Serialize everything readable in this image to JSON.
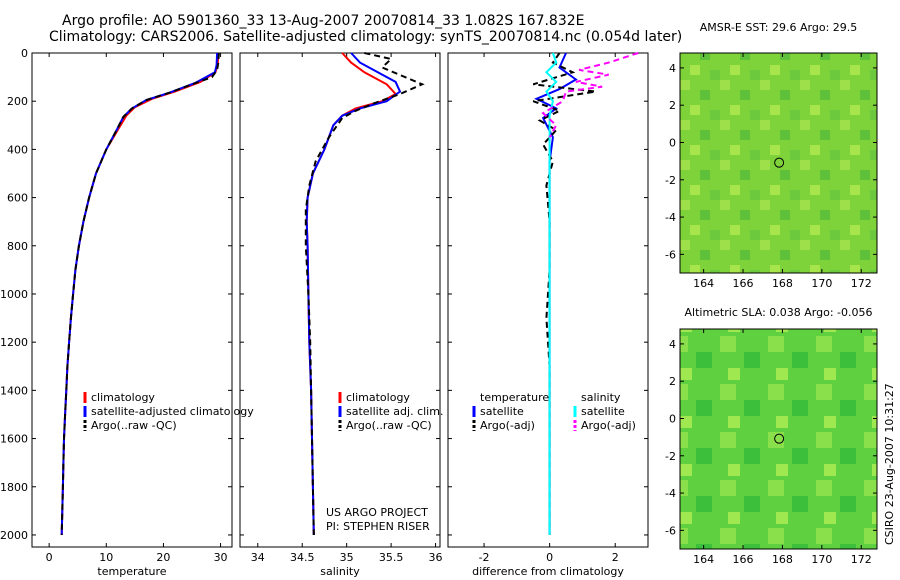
{
  "header": {
    "title_line1": "Argo profile: AO 5901360_33 13-Aug-2007 20070814_33 1.082S 167.832E",
    "title_line2": "Climatology: CARS2006. Satellite-adjusted climatology: synTS_20070814.nc (0.054d later)"
  },
  "side_text": "CSIRO 23-Aug-2007 10:31:27",
  "colors": {
    "climatology": "#ff0000",
    "satellite": "#0000ff",
    "argo": "#000000",
    "salinity_sat": "#00ffff",
    "salinity_argo": "#ff00ff"
  },
  "chart_data": [
    {
      "type": "line",
      "id": "temperature",
      "xlabel": "temperature",
      "xlim": [
        -3,
        32
      ],
      "ylim": [
        2050,
        0
      ],
      "xticks": [
        0,
        10,
        20,
        30
      ],
      "xtick_labels": [
        "0",
        "10",
        "20",
        "30"
      ],
      "yticks": [
        0,
        200,
        400,
        600,
        800,
        1000,
        1200,
        1400,
        1600,
        1800,
        2000
      ],
      "ytick_labels": [
        "0",
        "200",
        "400",
        "600",
        "800",
        "1000",
        "1200",
        "1400",
        "1600",
        "1800",
        "2000"
      ],
      "legend": [
        "climatology",
        "satellite-adjusted climatology",
        "Argo(..raw -QC)"
      ],
      "series": [
        {
          "name": "climatology",
          "style": "solid",
          "color": "#ff0000",
          "points": [
            [
              29.6,
              0
            ],
            [
              29.5,
              50
            ],
            [
              29.1,
              80
            ],
            [
              26.5,
              120
            ],
            [
              22,
              160
            ],
            [
              18,
              190
            ],
            [
              15,
              225
            ],
            [
              13.5,
              260
            ],
            [
              12,
              320
            ],
            [
              10,
              400
            ],
            [
              8.2,
              500
            ],
            [
              7,
              600
            ],
            [
              6,
              700
            ],
            [
              5.2,
              800
            ],
            [
              4.6,
              900
            ],
            [
              4.2,
              1000
            ],
            [
              3.8,
              1100
            ],
            [
              3.5,
              1200
            ],
            [
              3.2,
              1300
            ],
            [
              3,
              1400
            ],
            [
              2.8,
              1500
            ],
            [
              2.6,
              1600
            ],
            [
              2.5,
              1700
            ],
            [
              2.4,
              1800
            ],
            [
              2.3,
              1900
            ],
            [
              2.2,
              2000
            ]
          ]
        },
        {
          "name": "satellite-adjusted climatology",
          "style": "solid",
          "color": "#0000ff",
          "points": [
            [
              29.4,
              0
            ],
            [
              29.3,
              50
            ],
            [
              29,
              80
            ],
            [
              25.5,
              125
            ],
            [
              21,
              165
            ],
            [
              17,
              195
            ],
            [
              14.5,
              230
            ],
            [
              13,
              265
            ],
            [
              11.8,
              320
            ],
            [
              10,
              400
            ],
            [
              8.2,
              500
            ],
            [
              7,
              600
            ],
            [
              6,
              700
            ],
            [
              5.2,
              800
            ],
            [
              4.6,
              900
            ],
            [
              4.2,
              1000
            ],
            [
              3.8,
              1100
            ],
            [
              3.5,
              1200
            ],
            [
              3.2,
              1300
            ],
            [
              3,
              1400
            ],
            [
              2.8,
              1500
            ],
            [
              2.6,
              1600
            ],
            [
              2.5,
              1700
            ],
            [
              2.4,
              1800
            ],
            [
              2.3,
              1900
            ],
            [
              2.2,
              2000
            ]
          ]
        },
        {
          "name": "Argo(..raw -QC)",
          "style": "dash",
          "color": "#000000",
          "points": [
            [
              29.7,
              0
            ],
            [
              29.6,
              40
            ],
            [
              29.4,
              70
            ],
            [
              28.5,
              100
            ],
            [
              25,
              130
            ],
            [
              21,
              165
            ],
            [
              17,
              195
            ],
            [
              14.5,
              230
            ],
            [
              13,
              265
            ],
            [
              11.8,
              320
            ],
            [
              10,
              400
            ],
            [
              8.2,
              500
            ],
            [
              7,
              600
            ],
            [
              6,
              700
            ],
            [
              5.2,
              800
            ],
            [
              4.6,
              900
            ],
            [
              4.2,
              1000
            ],
            [
              3.8,
              1100
            ],
            [
              3.5,
              1200
            ],
            [
              3.2,
              1300
            ],
            [
              3,
              1400
            ],
            [
              2.8,
              1500
            ],
            [
              2.6,
              1600
            ],
            [
              2.5,
              1700
            ],
            [
              2.4,
              1800
            ],
            [
              2.3,
              1900
            ],
            [
              2.2,
              2000
            ]
          ]
        }
      ]
    },
    {
      "type": "line",
      "id": "salinity",
      "xlabel": "salinity",
      "xlim": [
        33.8,
        36.05
      ],
      "ylim": [
        2050,
        0
      ],
      "xticks": [
        34,
        34.5,
        35,
        35.5,
        36
      ],
      "xtick_labels": [
        "34",
        "34.5",
        "35",
        "35.5",
        "36"
      ],
      "legend": [
        "climatology",
        "satellite adj. clim.",
        "Argo(..raw -QC)"
      ],
      "annotation": [
        "US ARGO PROJECT",
        "PI: STEPHEN RISER"
      ],
      "series": [
        {
          "name": "climatology",
          "style": "solid",
          "color": "#ff0000",
          "points": [
            [
              34.95,
              0
            ],
            [
              35.05,
              40
            ],
            [
              35.2,
              80
            ],
            [
              35.45,
              130
            ],
            [
              35.55,
              170
            ],
            [
              35.4,
              200
            ],
            [
              35.1,
              230
            ],
            [
              34.95,
              260
            ],
            [
              34.85,
              300
            ],
            [
              34.75,
              400
            ],
            [
              34.62,
              500
            ],
            [
              34.56,
              600
            ],
            [
              34.55,
              700
            ],
            [
              34.56,
              800
            ],
            [
              34.57,
              1000
            ],
            [
              34.58,
              1200
            ],
            [
              34.6,
              1400
            ],
            [
              34.61,
              1600
            ],
            [
              34.62,
              1800
            ],
            [
              34.63,
              2000
            ]
          ]
        },
        {
          "name": "satellite adj. clim.",
          "style": "solid",
          "color": "#0000ff",
          "points": [
            [
              35.05,
              0
            ],
            [
              35.15,
              40
            ],
            [
              35.35,
              80
            ],
            [
              35.55,
              120
            ],
            [
              35.6,
              160
            ],
            [
              35.45,
              200
            ],
            [
              35.15,
              230
            ],
            [
              34.95,
              260
            ],
            [
              34.85,
              300
            ],
            [
              34.75,
              400
            ],
            [
              34.62,
              500
            ],
            [
              34.56,
              600
            ],
            [
              34.55,
              700
            ],
            [
              34.56,
              800
            ],
            [
              34.57,
              1000
            ],
            [
              34.58,
              1200
            ],
            [
              34.6,
              1400
            ],
            [
              34.61,
              1600
            ],
            [
              34.62,
              1800
            ],
            [
              34.63,
              2000
            ]
          ]
        },
        {
          "name": "Argo(..raw -QC)",
          "style": "dash",
          "color": "#000000",
          "points": [
            [
              35.2,
              0
            ],
            [
              35.5,
              25
            ],
            [
              35.4,
              60
            ],
            [
              35.85,
              130
            ],
            [
              35.6,
              170
            ],
            [
              35.3,
              210
            ],
            [
              35.1,
              240
            ],
            [
              34.95,
              270
            ],
            [
              34.8,
              350
            ],
            [
              34.65,
              450
            ],
            [
              34.58,
              550
            ],
            [
              34.54,
              650
            ],
            [
              34.54,
              800
            ],
            [
              34.57,
              1000
            ],
            [
              34.59,
              1200
            ],
            [
              34.6,
              1400
            ],
            [
              34.61,
              1600
            ],
            [
              34.62,
              1800
            ],
            [
              34.63,
              2000
            ]
          ]
        }
      ]
    },
    {
      "type": "line",
      "id": "difference",
      "xlabel": "difference from climatology",
      "xlim": [
        -3.1,
        3
      ],
      "ylim": [
        2050,
        0
      ],
      "xticks": [
        -2,
        0,
        2
      ],
      "xtick_labels": [
        "-2",
        "0",
        "2"
      ],
      "legend_groups": [
        {
          "heading": "temperature",
          "items": [
            "satellite",
            "Argo(-adj)"
          ]
        },
        {
          "heading": "salinity",
          "items": [
            "satellite",
            "Argo(-adj)"
          ]
        }
      ],
      "series": [
        {
          "name": "temperature satellite",
          "style": "solid",
          "color": "#0000ff",
          "points": [
            [
              0.5,
              0
            ],
            [
              0.3,
              60
            ],
            [
              0.8,
              110
            ],
            [
              0.3,
              150
            ],
            [
              -0.4,
              190
            ],
            [
              0.2,
              230
            ],
            [
              -0.2,
              270
            ],
            [
              0.1,
              350
            ],
            [
              0,
              450
            ],
            [
              0,
              600
            ],
            [
              0,
              800
            ],
            [
              0,
              1000
            ],
            [
              0,
              1500
            ],
            [
              0,
              2000
            ]
          ]
        },
        {
          "name": "temperature Argo(-adj)",
          "style": "dash",
          "color": "#000000",
          "points": [
            [
              0.3,
              0
            ],
            [
              0.1,
              40
            ],
            [
              0.7,
              80
            ],
            [
              -0.5,
              130
            ],
            [
              1.4,
              160
            ],
            [
              -0.5,
              200
            ],
            [
              0.3,
              240
            ],
            [
              -0.3,
              280
            ],
            [
              0.2,
              320
            ],
            [
              -0.2,
              380
            ],
            [
              0.1,
              450
            ],
            [
              -0.1,
              550
            ],
            [
              0,
              700
            ],
            [
              0,
              900
            ],
            [
              -0.1,
              1100
            ],
            [
              0,
              1300
            ],
            [
              0,
              1500
            ],
            [
              0,
              1700
            ],
            [
              0,
              2000
            ]
          ]
        },
        {
          "name": "salinity satellite",
          "style": "solid",
          "color": "#00ffff",
          "points": [
            [
              0.1,
              0
            ],
            [
              0.2,
              40
            ],
            [
              -0.1,
              80
            ],
            [
              0.2,
              120
            ],
            [
              -0.1,
              160
            ],
            [
              0.1,
              200
            ],
            [
              0,
              260
            ],
            [
              0,
              400
            ],
            [
              0,
              600
            ],
            [
              0,
              800
            ],
            [
              0,
              1000
            ],
            [
              0,
              1500
            ],
            [
              0,
              2000
            ]
          ]
        },
        {
          "name": "salinity Argo(-adj)",
          "style": "dash",
          "color": "#ff00ff",
          "points": [
            [
              2.7,
              0
            ],
            [
              1.8,
              40
            ],
            [
              0.9,
              70
            ],
            [
              1.8,
              90
            ],
            [
              0.8,
              120
            ],
            [
              1.6,
              140
            ],
            [
              0.5,
              160
            ],
            [
              0.4,
              200
            ],
            [
              -0.2,
              250
            ],
            [
              0.2,
              300
            ],
            [
              0,
              350
            ]
          ]
        }
      ]
    },
    {
      "type": "heatmap",
      "id": "sst_map",
      "title": "AMSR-E SST: 29.6 Argo: 29.5",
      "xlim": [
        162.8,
        172.8
      ],
      "ylim": [
        -7,
        4.8
      ],
      "xticks": [
        164,
        166,
        168,
        170,
        172
      ],
      "xtick_labels": [
        "164",
        "166",
        "168",
        "170",
        "172"
      ],
      "yticks": [
        4,
        2,
        0,
        -2,
        -4,
        -6
      ],
      "ytick_labels": [
        "4",
        "2",
        "0",
        "-2",
        "-4",
        "-6"
      ],
      "marker": [
        167.832,
        -1.082
      ]
    },
    {
      "type": "heatmap",
      "id": "sla_map",
      "title": "Altimetric SLA: 0.038 Argo: -0.056",
      "xlim": [
        162.8,
        172.8
      ],
      "ylim": [
        -7,
        4.8
      ],
      "xticks": [
        164,
        166,
        168,
        170,
        172
      ],
      "xtick_labels": [
        "164",
        "166",
        "168",
        "170",
        "172"
      ],
      "yticks": [
        4,
        2,
        0,
        -2,
        -4,
        -6
      ],
      "ytick_labels": [
        "4",
        "2",
        "0",
        "-2",
        "-4",
        "-6"
      ],
      "marker": [
        167.832,
        -1.082
      ]
    }
  ]
}
